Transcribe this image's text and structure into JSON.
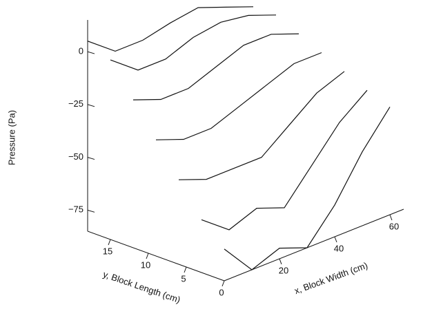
{
  "chart_data": {
    "type": "surface",
    "zlabel": "Pressure (Pa)",
    "ylabel": "y, Block Length (cm)",
    "xlabel": "x, Block Width (cm)",
    "x": [
      0,
      10,
      20,
      30,
      40,
      50,
      60
    ],
    "y": [
      0,
      3,
      6,
      9,
      12,
      15,
      18
    ],
    "z": [
      [
        -70,
        -85,
        -80,
        -85,
        -70,
        -50,
        -34
      ],
      [
        -60,
        -70,
        -65,
        -70,
        -55,
        -40,
        -30
      ],
      [
        -45,
        -50,
        -50,
        -50,
        -40,
        -30,
        -25
      ],
      [
        -30,
        -35,
        -35,
        -30,
        -25,
        -20,
        -20
      ],
      [
        -15,
        -20,
        -20,
        -15,
        -10,
        -10,
        -15
      ],
      [
        0,
        -10,
        -10,
        -5,
        -3,
        -5,
        -10
      ],
      [
        5,
        -5,
        -5,
        -2,
        0,
        -5,
        -10
      ]
    ],
    "color": "#111111",
    "xlim": [
      0,
      65
    ],
    "ylim": [
      0,
      18
    ],
    "zlim": [
      -85,
      15
    ],
    "xticks": [
      20,
      40,
      60
    ],
    "yticks": [
      0,
      5,
      10,
      15
    ],
    "zticks": [
      0,
      {
        "value": -25,
        "label": "−25"
      },
      {
        "value": -50,
        "label": "−50"
      },
      {
        "value": -75,
        "label": "−75"
      }
    ]
  }
}
